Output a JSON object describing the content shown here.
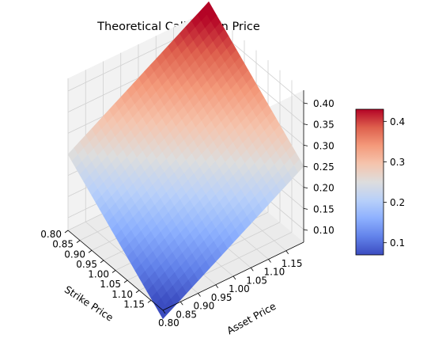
{
  "chart_data": {
    "type": "surface",
    "title": "Theoretical Call Option Price",
    "xlabel": "Strike Price",
    "ylabel": "Asset Price",
    "zlabel": "",
    "x": [
      0.8,
      0.85,
      0.9,
      0.95,
      1.0,
      1.05,
      1.1,
      1.15,
      1.2
    ],
    "y": [
      0.8,
      0.85,
      0.9,
      0.95,
      1.0,
      1.05,
      1.1,
      1.15,
      1.2
    ],
    "z_formula": "0.25 + 0.5*(asset - strike)",
    "zlim": [
      0.07,
      0.43
    ],
    "x_ticks": [
      "0.80",
      "0.85",
      "0.90",
      "0.95",
      "1.00",
      "1.05",
      "1.10",
      "1.15"
    ],
    "y_ticks": [
      "0.80",
      "0.85",
      "0.90",
      "0.95",
      "1.00",
      "1.05",
      "1.10",
      "1.15"
    ],
    "z_ticks": [
      "0.10",
      "0.15",
      "0.20",
      "0.25",
      "0.30",
      "0.35",
      "0.40"
    ],
    "colormap": "coolwarm",
    "colorbar": {
      "range": [
        0.07,
        0.43
      ],
      "ticks": [
        "0.1",
        "0.2",
        "0.3",
        "0.4"
      ]
    },
    "grid": true
  }
}
